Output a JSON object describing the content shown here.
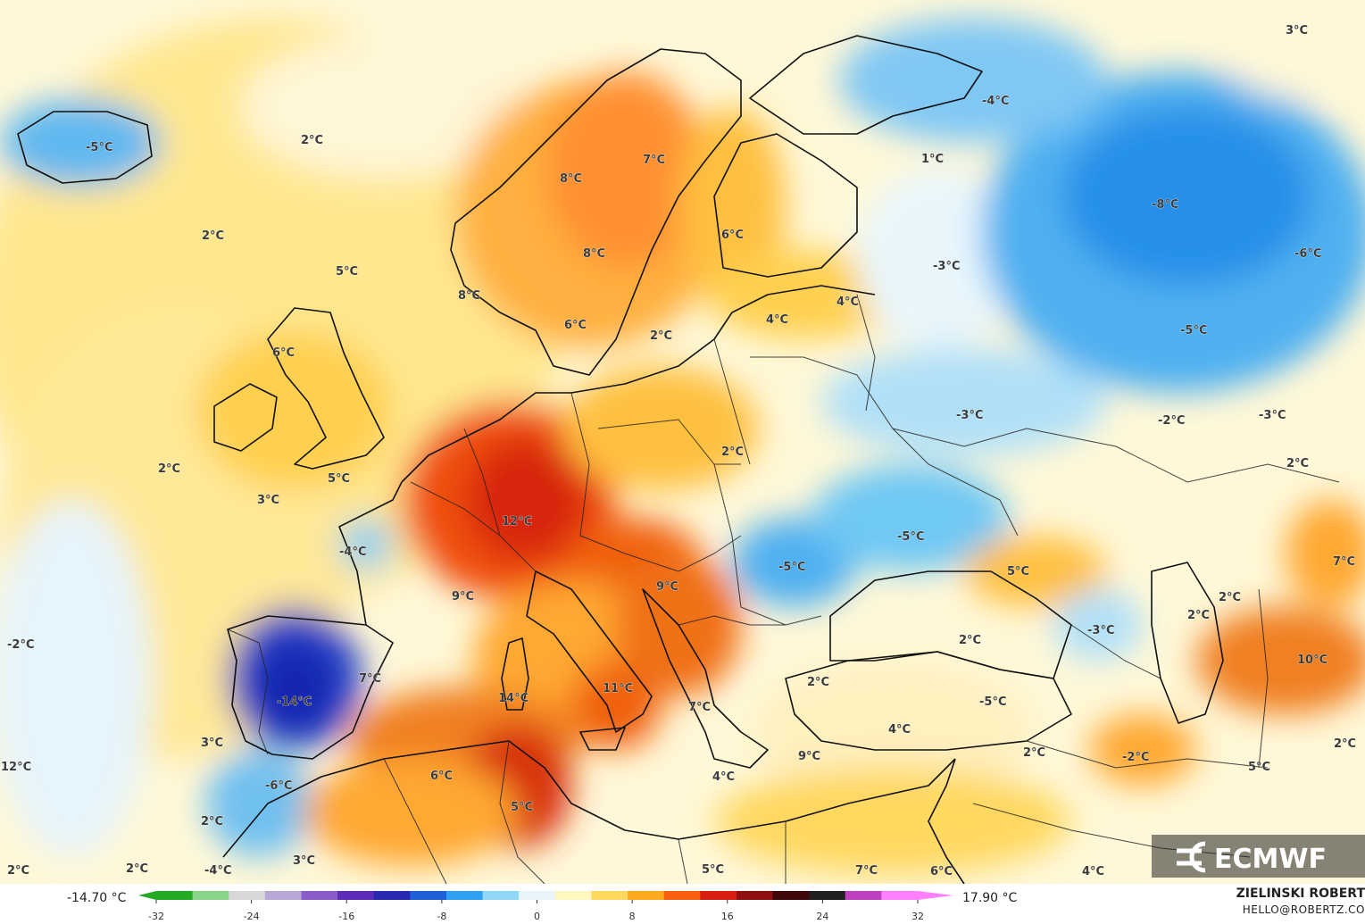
{
  "legend": {
    "min_label": "-14.70 °C",
    "max_label": "17.90 °C",
    "ticks": [
      "-32",
      "-24",
      "-16",
      "-8",
      "0",
      "8",
      "16",
      "24",
      "32"
    ],
    "tick_values": [
      -32,
      -24,
      -16,
      -8,
      0,
      8,
      16,
      24,
      32
    ],
    "range": [
      -32,
      32
    ],
    "colors": [
      "#22aa22",
      "#88d488",
      "#d8d8d8",
      "#b8a8d8",
      "#8a5cc8",
      "#5a2cb8",
      "#2a2ab0",
      "#2060d8",
      "#30a0f0",
      "#90d8f8",
      "#e8f6fc",
      "#fff6c0",
      "#ffd860",
      "#ffa820",
      "#f86010",
      "#d82010",
      "#901010",
      "#400808",
      "#202020",
      "#c040c0",
      "#ff80ff"
    ]
  },
  "credit": {
    "name": "ZIELINSKI ROBERT",
    "email": "HELLO@ROBERTZ.CO"
  },
  "logo": {
    "text": "ECMWF"
  },
  "labels": [
    {
      "text": "3°C"
    },
    {
      "text": "-4°C"
    },
    {
      "text": "-5°C"
    },
    {
      "text": "2°C"
    },
    {
      "text": "7°C"
    },
    {
      "text": "8°C"
    },
    {
      "text": "1°C"
    },
    {
      "text": "-8°C"
    },
    {
      "text": "2°C"
    },
    {
      "text": "6°C"
    },
    {
      "text": "8°C"
    },
    {
      "text": "-6°C"
    },
    {
      "text": "5°C"
    },
    {
      "text": "-3°C"
    },
    {
      "text": "8°C"
    },
    {
      "text": "4°C"
    },
    {
      "text": "6°C"
    },
    {
      "text": "4°C"
    },
    {
      "text": "-5°C"
    },
    {
      "text": "2°C"
    },
    {
      "text": "6°C"
    },
    {
      "text": "-3°C"
    },
    {
      "text": "-2°C"
    },
    {
      "text": "-3°C"
    },
    {
      "text": "2°C"
    },
    {
      "text": "2°C"
    },
    {
      "text": "2°C"
    },
    {
      "text": "5°C"
    },
    {
      "text": "3°C"
    },
    {
      "text": "12°C"
    },
    {
      "text": "-5°C"
    },
    {
      "text": "-4°C"
    },
    {
      "text": "-5°C"
    },
    {
      "text": "5°C"
    },
    {
      "text": "7°C"
    },
    {
      "text": "9°C"
    },
    {
      "text": "9°C"
    },
    {
      "text": "2°C"
    },
    {
      "text": "-2°C"
    },
    {
      "text": "-3°C"
    },
    {
      "text": "2°C"
    },
    {
      "text": "2°C"
    },
    {
      "text": "10°C"
    },
    {
      "text": "7°C"
    },
    {
      "text": "11°C"
    },
    {
      "text": "2°C"
    },
    {
      "text": "-14°C"
    },
    {
      "text": "14°C"
    },
    {
      "text": "7°C"
    },
    {
      "text": "-5°C"
    },
    {
      "text": "4°C"
    },
    {
      "text": "2°C"
    },
    {
      "text": "2°C"
    },
    {
      "text": "3°C"
    },
    {
      "text": "9°C"
    },
    {
      "text": "-2°C"
    },
    {
      "text": "5°C"
    },
    {
      "text": "6°C"
    },
    {
      "text": "12°C"
    },
    {
      "text": "-6°C"
    },
    {
      "text": "4°C"
    },
    {
      "text": "5°C"
    },
    {
      "text": "2°C"
    },
    {
      "text": "3°C"
    },
    {
      "text": "2°C"
    },
    {
      "text": "2°C"
    },
    {
      "text": "-4°C"
    },
    {
      "text": "5°C"
    },
    {
      "text": "7°C"
    },
    {
      "text": "6°C"
    },
    {
      "text": "4°C"
    }
  ]
}
